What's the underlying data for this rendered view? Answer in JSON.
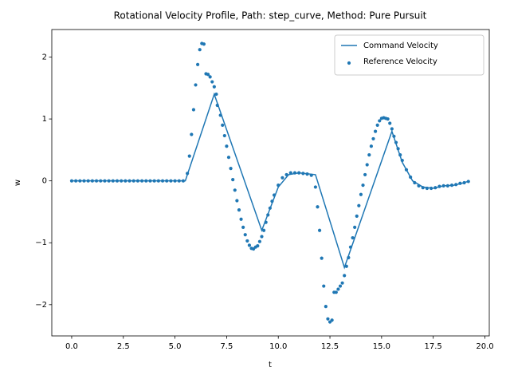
{
  "chart_data": {
    "type": "line_scatter",
    "title": "Rotational Velocity Profile, Path: step_curve, Method: Pure Pursuit",
    "x_label": "t",
    "y_label": "w",
    "xlim": [
      -0.9625,
      20.2125
    ],
    "ylim": [
      -2.505,
      2.445
    ],
    "xticks": [
      {
        "value": 0,
        "label": "0.0"
      },
      {
        "value": 2.5,
        "label": "2.5"
      },
      {
        "value": 5,
        "label": "5.0"
      },
      {
        "value": 7.5,
        "label": "7.5"
      },
      {
        "value": 10,
        "label": "10.0"
      },
      {
        "value": 12.5,
        "label": "12.5"
      },
      {
        "value": 15,
        "label": "15.0"
      },
      {
        "value": 17.5,
        "label": "17.5"
      },
      {
        "value": 20,
        "label": "20.0"
      }
    ],
    "yticks": [
      {
        "value": -2,
        "label": "−2"
      },
      {
        "value": -1,
        "label": "−1"
      },
      0,
      1,
      2
    ],
    "legend": "upper right",
    "series": [
      {
        "name": "Command Velocity",
        "kind": "line",
        "color": "#1f77b4",
        "x": [
          0,
          5.5,
          6.9,
          9.2,
          10,
          10.5,
          11,
          11.8,
          13.2,
          15.5,
          16,
          16.5,
          17,
          17.5,
          18,
          18.5,
          19,
          19.25
        ],
        "values": [
          0,
          0,
          1.4,
          -0.8,
          -0.1,
          0.1,
          0.13,
          0.1,
          -1.4,
          0.8,
          0.3,
          0,
          -0.1,
          -0.12,
          -0.08,
          -0.07,
          -0.03,
          0
        ]
      },
      {
        "name": "Reference Velocity",
        "kind": "scatter",
        "color": "#1f77b4",
        "x": [
          0,
          0.2,
          0.4,
          0.6,
          0.8,
          1,
          1.2,
          1.4,
          1.6,
          1.8,
          2,
          2.2,
          2.4,
          2.6,
          2.8,
          3,
          3.2,
          3.4,
          3.6,
          3.8,
          4,
          4.2,
          4.4,
          4.6,
          4.8,
          5,
          5.2,
          5.4,
          5.6,
          5.7,
          5.8,
          5.9,
          6,
          6.1,
          6.2,
          6.3,
          6.4,
          6.5,
          6.6,
          6.7,
          6.8,
          6.9,
          7,
          7.05,
          7.2,
          7.3,
          7.4,
          7.5,
          7.6,
          7.7,
          7.8,
          7.9,
          8,
          8.1,
          8.2,
          8.3,
          8.4,
          8.5,
          8.6,
          8.7,
          8.8,
          8.9,
          9,
          9.1,
          9.2,
          9.3,
          9.4,
          9.5,
          9.6,
          9.7,
          9.8,
          10,
          10.2,
          10.4,
          10.6,
          10.8,
          11,
          11.2,
          11.4,
          11.6,
          11.8,
          11.9,
          12,
          12.1,
          12.2,
          12.3,
          12.4,
          12.5,
          12.6,
          12.7,
          12.8,
          12.9,
          13,
          13.1,
          13.2,
          13.3,
          13.4,
          13.5,
          13.6,
          13.7,
          13.8,
          13.9,
          14,
          14.1,
          14.2,
          14.3,
          14.4,
          14.5,
          14.6,
          14.7,
          14.8,
          14.9,
          15,
          15.1,
          15.2,
          15.3,
          15.4,
          15.5,
          15.6,
          15.7,
          15.8,
          15.9,
          16,
          16.2,
          16.4,
          16.6,
          16.8,
          17,
          17.2,
          17.4,
          17.6,
          17.8,
          18,
          18.2,
          18.4,
          18.6,
          18.8,
          19,
          19.2
        ],
        "values": [
          0,
          0,
          0,
          0,
          0,
          0,
          0,
          0,
          0,
          0,
          0,
          0,
          0,
          0,
          0,
          0,
          0,
          0,
          0,
          0,
          0,
          0,
          0,
          0,
          0,
          0,
          0,
          0,
          0.12,
          0.4,
          0.75,
          1.15,
          1.55,
          1.88,
          2.12,
          2.22,
          2.21,
          1.73,
          1.72,
          1.68,
          1.6,
          1.52,
          1.4,
          1.22,
          1.06,
          0.9,
          0.73,
          0.56,
          0.38,
          0.2,
          0.02,
          -0.15,
          -0.32,
          -0.47,
          -0.62,
          -0.75,
          -0.87,
          -0.97,
          -1.04,
          -1.09,
          -1.1,
          -1.07,
          -1.05,
          -0.98,
          -0.9,
          -0.8,
          -0.67,
          -0.55,
          -0.44,
          -0.33,
          -0.23,
          -0.07,
          0.05,
          0.1,
          0.13,
          0.13,
          0.13,
          0.12,
          0.11,
          0.09,
          -0.1,
          -0.42,
          -0.8,
          -1.25,
          -1.7,
          -2.03,
          -2.23,
          -2.28,
          -2.25,
          -1.8,
          -1.8,
          -1.75,
          -1.7,
          -1.65,
          -1.53,
          -1.38,
          -1.24,
          -1.07,
          -0.92,
          -0.75,
          -0.57,
          -0.4,
          -0.22,
          -0.07,
          0.1,
          0.26,
          0.42,
          0.56,
          0.68,
          0.8,
          0.9,
          0.97,
          1.01,
          1.02,
          1.01,
          1,
          0.93,
          0.84,
          0.72,
          0.62,
          0.52,
          0.42,
          0.33,
          0.18,
          0.06,
          -0.03,
          -0.08,
          -0.11,
          -0.12,
          -0.12,
          -0.11,
          -0.09,
          -0.08,
          -0.08,
          -0.07,
          -0.06,
          -0.04,
          -0.03,
          -0.01
        ]
      }
    ]
  }
}
